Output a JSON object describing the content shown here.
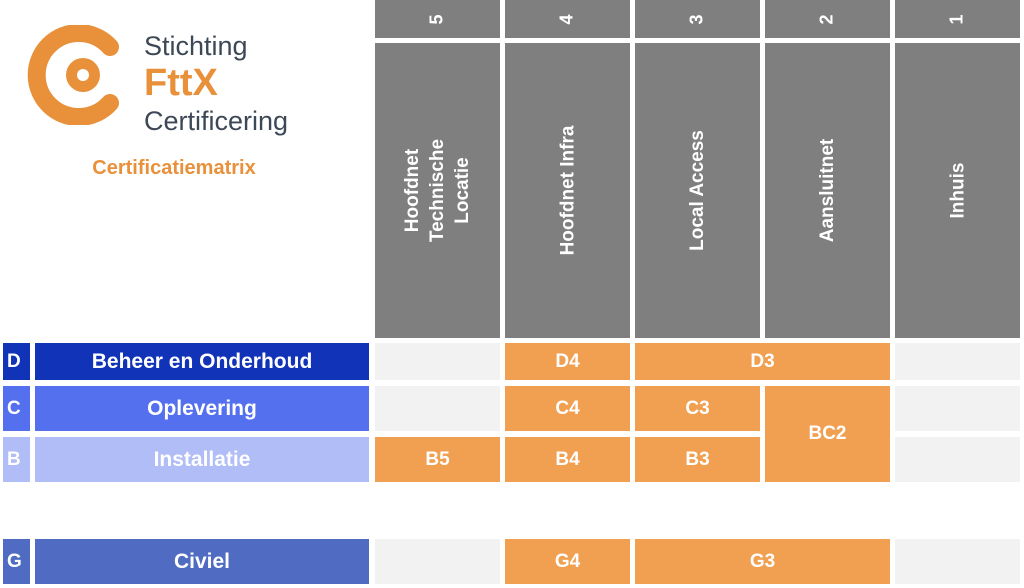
{
  "logo": {
    "line1": "Stichting",
    "line2": "FttX",
    "line3": "Certificering",
    "subtitle": "Certificatiematrix"
  },
  "columns": [
    {
      "number": "5",
      "label": "Hoofdnet Technische\nLocatie"
    },
    {
      "number": "4",
      "label": "Hoofdnet Infra"
    },
    {
      "number": "3",
      "label": "Local Access"
    },
    {
      "number": "2",
      "label": "Aansluitnet"
    },
    {
      "number": "1",
      "label": "Inhuis"
    }
  ],
  "rows": [
    {
      "code": "D",
      "label": "Beheer en Onderhoud"
    },
    {
      "code": "C",
      "label": "Oplevering"
    },
    {
      "code": "B",
      "label": "Installatie"
    },
    {
      "code": "G",
      "label": "Civiel"
    }
  ],
  "cells": {
    "D4": "D4",
    "D3": "D3",
    "C4": "C4",
    "C3": "C3",
    "BC2": "BC2",
    "B5": "B5",
    "B4": "B4",
    "B3": "B3",
    "G4": "G4",
    "G3": "G3"
  },
  "colors": {
    "header_grey": "#7f7f7f",
    "row_D": "#1133b8",
    "row_C": "#5570ee",
    "row_B": "#b0bdf6",
    "row_G": "#4f6cc2",
    "cert_orange": "#f0a050",
    "empty_cell": "#f2f2f2",
    "logo_orange": "#e8913a",
    "subtitle_orange": "#e8913a"
  }
}
